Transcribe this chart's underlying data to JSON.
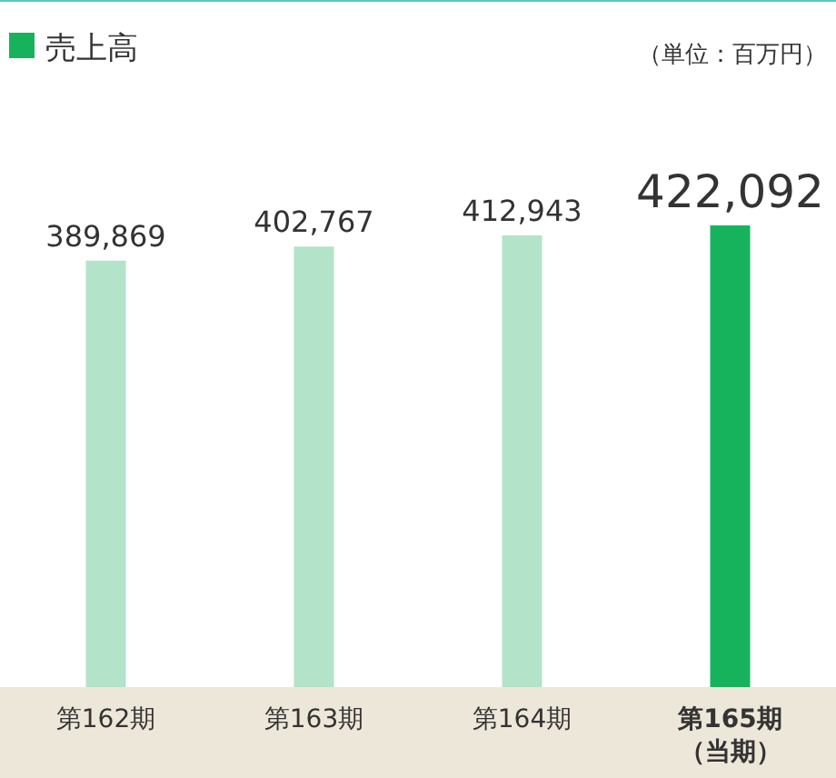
{
  "chart_data": {
    "type": "bar",
    "categories": [
      "第162期",
      "第163期",
      "第164期",
      "第165期（当期）"
    ],
    "series": [
      {
        "name": "売上高",
        "values": [
          389869,
          402767,
          412943,
          422092
        ],
        "colors": [
          "#b3e3c8",
          "#b3e3c8",
          "#b3e3c8",
          "#17b35c"
        ],
        "value_labels": [
          "389,869",
          "402,767",
          "412,943",
          "422,092"
        ]
      }
    ],
    "legend": "top left",
    "annotations": [
      "（単位：百万円）"
    ]
  }
}
